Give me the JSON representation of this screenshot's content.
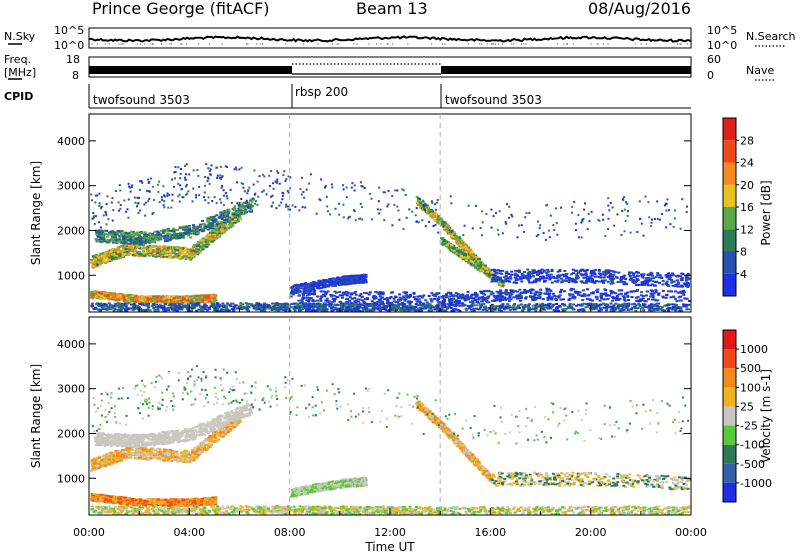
{
  "header": {
    "station": "Prince George (fitACF)",
    "beam": "Beam 13",
    "date": "08/Aug/2016"
  },
  "noise_panel": {
    "left_label": "N.Sky",
    "right_label": "N.Search",
    "yticks": [
      "10^5",
      "10^0"
    ],
    "rticks": [
      "10^5",
      "10^0"
    ]
  },
  "freq_panel": {
    "left_label_1": "Freq.",
    "left_label_2": "[MHz]",
    "right_label": "Nave",
    "yticks": [
      "18",
      "8"
    ],
    "rticks": [
      "60",
      "0"
    ]
  },
  "cpid_panel": {
    "label": "CPID",
    "segments": [
      {
        "name": "twofsound 3503",
        "start_h": 0,
        "end_h": 8
      },
      {
        "name": "rbsp 200",
        "start_h": 8,
        "end_h": 14
      },
      {
        "name": "twofsound 3503",
        "start_h": 14,
        "end_h": 24
      }
    ]
  },
  "x_axis": {
    "label": "Time UT",
    "ticks": [
      "00:00",
      "04:00",
      "08:00",
      "12:00",
      "16:00",
      "20:00",
      "00:00"
    ]
  },
  "chart_data": [
    {
      "type": "heatmap",
      "quantity": "Power",
      "ylabel": "Slant Range [km]",
      "colorbar_label": "Power [dB]",
      "colorbar_ticks": [
        "28",
        "24",
        "20",
        "16",
        "12",
        "8",
        "4"
      ],
      "colorbar_colors": [
        "#1e2fe6",
        "#2550b0",
        "#2e7a56",
        "#5aa84a",
        "#e6c21e",
        "#f58a1c",
        "#f04a18",
        "#e0201a"
      ],
      "xlim_h": [
        0,
        24
      ],
      "ylim_km": [
        180,
        4600
      ],
      "yticks": [
        1000,
        2000,
        3000,
        4000
      ],
      "mode_boundaries_h": [
        8,
        14
      ]
    },
    {
      "type": "heatmap",
      "quantity": "Velocity",
      "ylabel": "Slant Range [km]",
      "colorbar_label": "Velocity [m s-1]",
      "colorbar_ticks": [
        "1000",
        "500",
        "100",
        "25",
        "-25",
        "-100",
        "-500",
        "-1000"
      ],
      "colorbar_colors": [
        "#1e2fe6",
        "#3560a8",
        "#2e7a56",
        "#5ac83a",
        "#c8c8c0",
        "#f0b21e",
        "#f58a1c",
        "#f04a18",
        "#e01818"
      ],
      "xlim_h": [
        0,
        24
      ],
      "ylim_km": [
        180,
        4600
      ],
      "yticks": [
        1000,
        2000,
        3000,
        4000
      ],
      "mode_boundaries_h": [
        8,
        14
      ]
    }
  ]
}
